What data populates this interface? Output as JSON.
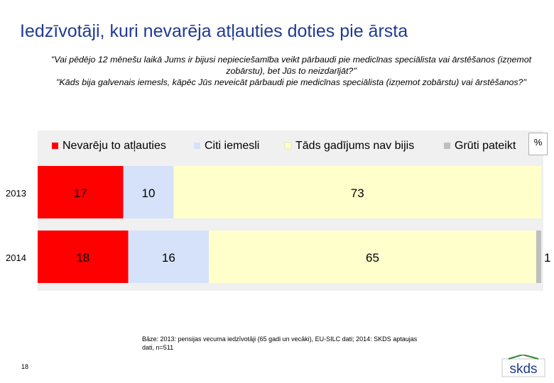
{
  "title": "Iedzīvotāji, kuri nevarēja atļauties doties pie ārsta",
  "question": {
    "line1": "\"Vai pēdējo 12 mēnešu laikā Jums ir bijusi nepieciešamība veikt pārbaudi pie medicīnas speciālista vai ārstēšanos (izņemot zobārstu), bet Jūs to neizdarījāt?\"",
    "line2": "\"Kāds bija galvenais iemesls, kāpēc Jūs neveicāt pārbaudi pie medicīnas speciālista (izņemot zobārstu) vai ārstēšanos?\""
  },
  "percent_symbol": "%",
  "base_note": "Bāze: 2013: pensijas vecuma iedzīvotāji (65 gadi un vecāki), EU-SILC dati; 2014: SKDS aptaujas dati, n=511",
  "page_number": "18",
  "logo_text": "skds",
  "chart_data": {
    "type": "bar",
    "orientation": "horizontal",
    "stacked": true,
    "categories": [
      "2013",
      "2014"
    ],
    "series": [
      {
        "name": "Nevarēju to atļauties",
        "color": "#ff0000",
        "values": [
          17,
          18
        ]
      },
      {
        "name": "Citi iemesli",
        "color": "#d6e2fa",
        "values": [
          10,
          16
        ]
      },
      {
        "name": "Tāds gadījums nav bijis",
        "color": "#ffffcc",
        "values": [
          73,
          65
        ]
      },
      {
        "name": "Grūti pateikt",
        "color": "#bfbfbf",
        "values": [
          0,
          1
        ]
      }
    ],
    "xlim": [
      0,
      100
    ],
    "unit": "%",
    "legend_position": "top"
  }
}
